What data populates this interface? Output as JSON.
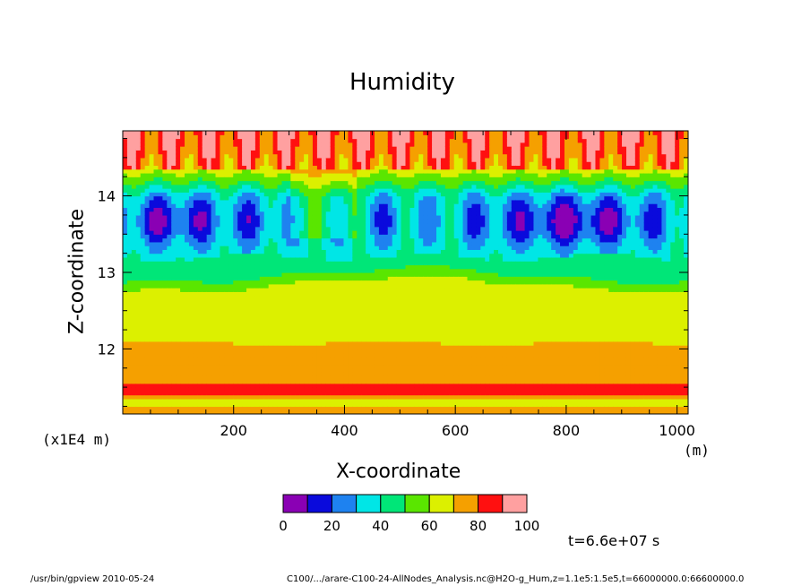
{
  "chart_data": {
    "type": "heatmap",
    "title": "Humidity",
    "xlabel": "X-coordinate",
    "ylabel": "Z-coordinate",
    "x_unit": "(m)",
    "y_unit": "(x1E4 m)",
    "xlim": [
      0,
      1020
    ],
    "ylim": [
      11.15,
      14.85
    ],
    "x_ticks": [
      200,
      400,
      600,
      800,
      1000
    ],
    "y_ticks": [
      12,
      13,
      14
    ],
    "colorbar": {
      "levels": [
        0,
        10,
        20,
        30,
        40,
        50,
        60,
        70,
        80,
        90,
        100
      ],
      "tick_labels": [
        "0",
        "20",
        "40",
        "60",
        "80",
        "100"
      ],
      "colors": [
        "#8a00b4",
        "#0a0adc",
        "#1e82f0",
        "#00e6e6",
        "#00e678",
        "#5ae600",
        "#dcf000",
        "#f5a000",
        "#ff1010",
        "#ffa0a0"
      ]
    },
    "profile_by_z": [
      {
        "z_min": 11.15,
        "z_max": 11.25,
        "level": "70-80"
      },
      {
        "z_min": 11.25,
        "z_max": 11.33,
        "level": "60-70"
      },
      {
        "z_min": 11.33,
        "z_max": 11.4,
        "level": "70-80"
      },
      {
        "z_min": 11.4,
        "z_max": 11.57,
        "level": "80-90"
      },
      {
        "z_min": 11.57,
        "z_max": 12.1,
        "level": "70-80"
      },
      {
        "z_min": 12.1,
        "z_max": 12.95,
        "level": "60-70"
      },
      {
        "z_min": 12.95,
        "z_max": 13.1,
        "level": "50-60"
      },
      {
        "z_min": 13.1,
        "z_max": 13.35,
        "level": "40-50"
      },
      {
        "z_min": 13.35,
        "z_max": 13.95,
        "level": "10-40"
      },
      {
        "z_min": 13.95,
        "z_max": 14.4,
        "level": "30-60"
      },
      {
        "z_min": 14.4,
        "z_max": 14.85,
        "level": "70-100"
      }
    ]
  },
  "labels": {
    "time": "t=6.6e+07 s",
    "footer_left": "/usr/bin/gpview   2010-05-24",
    "footer_right": "C100/.../arare-C100-24-AllNodes_Analysis.nc@H2O-g_Hum,z=1.1e5:1.5e5,t=66000000.0:66600000.0"
  }
}
